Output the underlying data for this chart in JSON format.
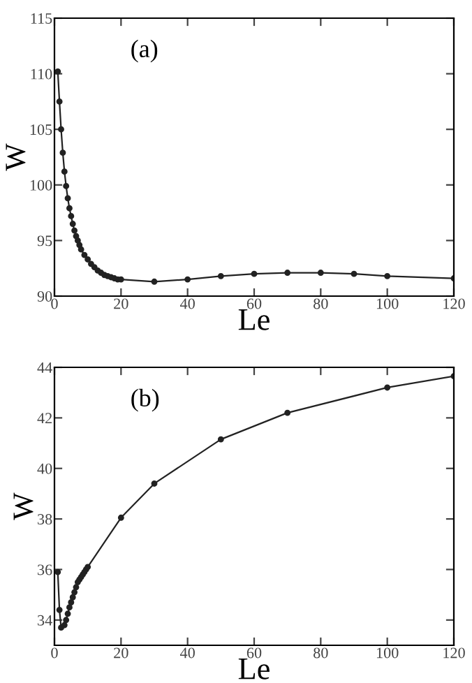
{
  "chart_data": [
    {
      "type": "line",
      "xlabel": "Le",
      "ylabel": "W",
      "annotations": [
        "(a)"
      ],
      "marker": "circle",
      "line_style": "solid",
      "grid": false,
      "legend": false,
      "xlim": [
        0,
        120
      ],
      "xticks": [
        0,
        20,
        40,
        60,
        80,
        100,
        120
      ],
      "ylim": [
        90,
        115
      ],
      "yticks": [
        90,
        95,
        100,
        105,
        110,
        115
      ],
      "series": [
        {
          "color": "#222222",
          "x": [
            1,
            1.5,
            2,
            2.5,
            3,
            3.5,
            4,
            4.5,
            5,
            5.5,
            6,
            6.5,
            7,
            7.5,
            8,
            9,
            10,
            11,
            12,
            13,
            14,
            15,
            16,
            17,
            18,
            19,
            20,
            30,
            40,
            50,
            60,
            70,
            80,
            90,
            100,
            120
          ],
          "values": [
            110.2,
            107.5,
            105.0,
            102.9,
            101.2,
            99.9,
            98.8,
            97.9,
            97.2,
            96.5,
            95.9,
            95.4,
            95.0,
            94.6,
            94.2,
            93.7,
            93.3,
            92.9,
            92.6,
            92.3,
            92.1,
            91.9,
            91.8,
            91.7,
            91.6,
            91.5,
            91.5,
            91.3,
            91.5,
            91.8,
            92.0,
            92.1,
            92.1,
            92.0,
            91.8,
            91.6
          ]
        }
      ]
    },
    {
      "type": "line",
      "xlabel": "Le",
      "ylabel": "W",
      "annotations": [
        "(b)"
      ],
      "marker": "circle",
      "line_style": "solid",
      "grid": false,
      "legend": false,
      "xlim": [
        0,
        120
      ],
      "xticks": [
        0,
        20,
        40,
        60,
        80,
        100,
        120
      ],
      "ylim": [
        33,
        44
      ],
      "yticks": [
        34,
        36,
        38,
        40,
        42,
        44
      ],
      "series": [
        {
          "color": "#222222",
          "x": [
            1,
            1.5,
            2,
            3,
            3.5,
            4,
            4.5,
            5,
            5.5,
            6,
            6.5,
            7,
            7.5,
            8,
            8.5,
            9,
            9.5,
            10,
            20,
            30,
            50,
            70,
            100,
            120
          ],
          "values": [
            35.9,
            34.4,
            33.7,
            33.8,
            34.0,
            34.25,
            34.5,
            34.7,
            34.9,
            35.1,
            35.3,
            35.5,
            35.6,
            35.7,
            35.8,
            35.9,
            36.0,
            36.1,
            38.05,
            39.4,
            41.15,
            42.2,
            43.2,
            43.65
          ]
        }
      ]
    }
  ]
}
